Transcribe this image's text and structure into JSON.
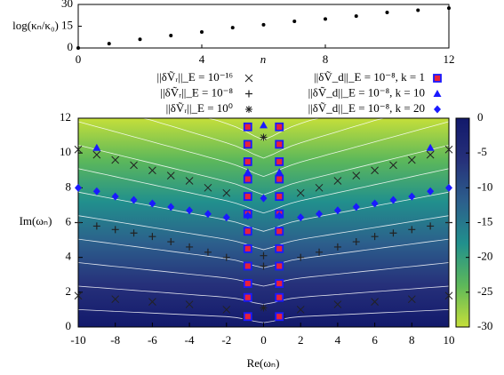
{
  "chart_data": [
    {
      "type": "scatter",
      "x_label": "n",
      "y_label": "log(κₙ/κ₀)",
      "x": [
        0,
        1,
        2,
        3,
        4,
        5,
        6,
        7,
        8,
        9,
        10,
        11,
        12
      ],
      "values": [
        0,
        3,
        6,
        8.6,
        11,
        14,
        16,
        18.4,
        20,
        22,
        24.5,
        26,
        27.5
      ],
      "color": "#000000",
      "xlim": [
        0,
        12
      ],
      "xticks": [
        0,
        4,
        8,
        12
      ],
      "ylim": [
        0,
        30
      ],
      "yticks": [
        0,
        15,
        30
      ]
    },
    {
      "type": "scatter",
      "x_label": "Re(ωₙ)",
      "y_label": "Im(ωₙ)",
      "xlim": [
        -10,
        10
      ],
      "xticks": [
        -10,
        -8,
        -6,
        -4,
        -2,
        0,
        2,
        4,
        6,
        8,
        10
      ],
      "ylim": [
        0,
        12
      ],
      "yticks": [
        0,
        2,
        4,
        6,
        8,
        10,
        12
      ],
      "zlim": [
        -30,
        0
      ],
      "zticks": [
        0,
        -5,
        -10,
        -15,
        -20,
        -25,
        -30
      ],
      "colormap": [
        "#c5df3a",
        "#5db85a",
        "#21908d",
        "#2c5f8c",
        "#26307a",
        "#12196b"
      ],
      "series": [
        {
          "name": "||δṼᵣ||_E = 10⁻¹⁶",
          "marker": "x",
          "color": "#222222",
          "x": [
            -10,
            -9,
            -8,
            -7,
            -6,
            -5,
            -4,
            -3,
            -2,
            2,
            3,
            4,
            5,
            6,
            7,
            8,
            9,
            10,
            -10,
            -8,
            -6,
            -4,
            -2,
            2,
            4,
            6,
            8,
            10
          ],
          "values": [
            10.2,
            9.9,
            9.6,
            9.3,
            9.0,
            8.7,
            8.4,
            8.0,
            7.7,
            7.7,
            8.0,
            8.4,
            8.7,
            9.0,
            9.3,
            9.6,
            9.9,
            10.2,
            1.8,
            1.6,
            1.45,
            1.3,
            1.0,
            1.0,
            1.3,
            1.45,
            1.6,
            1.8
          ]
        },
        {
          "name": "||δṼᵣ||_E = 10⁻⁸",
          "marker": "plus",
          "color": "#222222",
          "x": [
            -10,
            -9,
            -8,
            -7,
            -6,
            -5,
            -4,
            -3,
            -2,
            2,
            3,
            4,
            5,
            6,
            7,
            8,
            9,
            10,
            0,
            0
          ],
          "values": [
            6.0,
            5.8,
            5.6,
            5.4,
            5.2,
            4.9,
            4.6,
            4.3,
            4.0,
            4.0,
            4.3,
            4.6,
            4.9,
            5.2,
            5.4,
            5.6,
            5.8,
            6.0,
            3.5,
            4.1
          ]
        },
        {
          "name": "||δṼᵣ||_E = 10⁰",
          "marker": "star",
          "color": "#222222",
          "x": [
            0,
            -1,
            1,
            0
          ],
          "values": [
            10.9,
            0.6,
            0.6,
            1.1
          ]
        },
        {
          "name": "||δṼ_d||_E = 10⁻⁸, k = 1",
          "marker": "square",
          "color": "#1a1aff",
          "x": [
            -0.85,
            -0.85,
            -0.85,
            -0.85,
            -0.85,
            -0.85,
            -0.85,
            -0.85,
            -0.85,
            -0.85,
            -0.85,
            -0.85,
            0.85,
            0.85,
            0.85,
            0.85,
            0.85,
            0.85,
            0.85,
            0.85,
            0.85,
            0.85,
            0.85,
            0.85
          ],
          "values": [
            0.6,
            1.7,
            2.5,
            3.5,
            4.5,
            5.5,
            6.5,
            7.5,
            8.5,
            9.5,
            10.5,
            11.5,
            0.6,
            1.7,
            2.5,
            3.5,
            4.5,
            5.5,
            6.5,
            7.5,
            8.5,
            9.5,
            10.5,
            11.5
          ]
        },
        {
          "name": "||δṼ_d||_E = 10⁻⁸, k = 10",
          "marker": "triangle",
          "color": "#1a1aff",
          "x": [
            -9,
            9,
            0,
            -0.85,
            0.85
          ],
          "values": [
            10.3,
            10.3,
            11.6,
            8.9,
            8.9
          ]
        },
        {
          "name": "||δṼ_d||_E = 10⁻⁸, k = 20",
          "marker": "diamond",
          "color": "#1a1aff",
          "x": [
            -10,
            -9,
            -8,
            -7,
            -6,
            -5,
            -4,
            -3,
            -2,
            2,
            3,
            4,
            5,
            6,
            7,
            8,
            9,
            10,
            -0.85,
            0.85,
            0
          ],
          "values": [
            8.0,
            7.8,
            7.5,
            7.3,
            7.1,
            6.9,
            6.7,
            6.5,
            6.3,
            6.3,
            6.5,
            6.7,
            6.9,
            7.1,
            7.3,
            7.5,
            7.8,
            8.0,
            6.4,
            6.4,
            7.4
          ]
        }
      ]
    }
  ]
}
